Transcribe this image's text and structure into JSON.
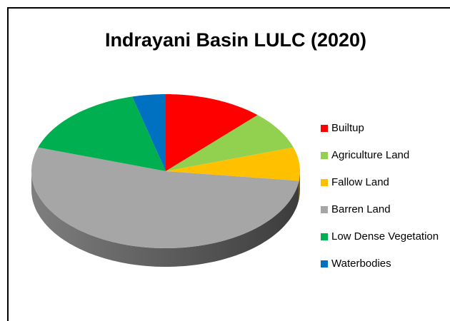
{
  "chart_data": {
    "type": "pie",
    "title": "Indrayani Basin LULC (2020)",
    "categories": [
      "Builtup",
      "Agriculture Land",
      "Fallow Land",
      "Barren Land",
      "Low Dense Vegetation",
      "Waterbodies"
    ],
    "values": [
      12,
      8,
      7,
      53,
      16,
      4
    ],
    "colors": [
      "#ff0000",
      "#92d050",
      "#ffc000",
      "#a6a6a6",
      "#00b050",
      "#0070c0"
    ],
    "legend": "right"
  }
}
